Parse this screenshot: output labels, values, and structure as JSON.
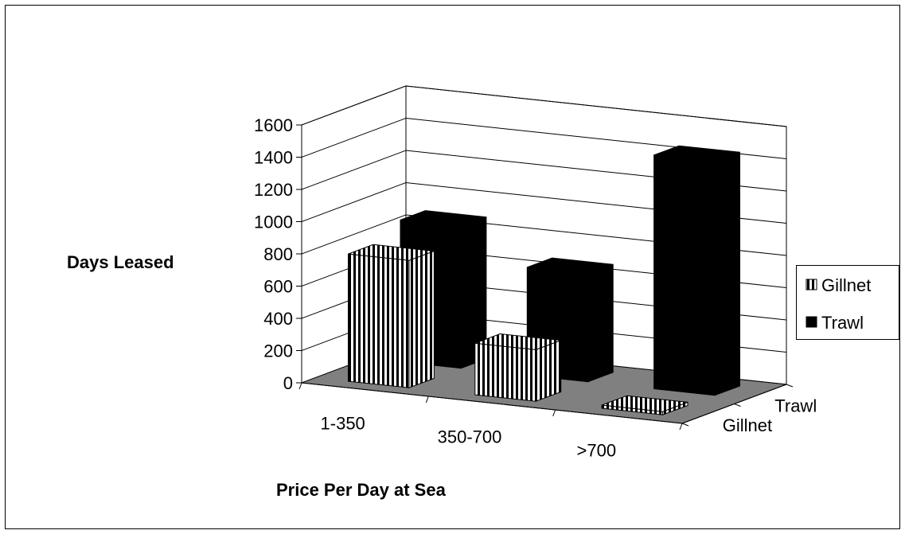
{
  "chart_data": {
    "type": "bar",
    "subtype": "3d-clustered-column",
    "title": "",
    "xlabel": "Price Per Day at Sea",
    "ylabel": "Days Leased",
    "categories": [
      "1-350",
      "350-700",
      ">700"
    ],
    "depth_labels": [
      "Trawl",
      "Gillnet"
    ],
    "ylim": [
      0,
      1600
    ],
    "yticks": [
      "0",
      "200",
      "400",
      "600",
      "800",
      "1000",
      "1200",
      "1400",
      "1600"
    ],
    "grid": true,
    "legend_position": "right",
    "series": [
      {
        "name": "Gillnet",
        "values": [
          790,
          320,
          20
        ],
        "pattern": "vertical-stripes",
        "color": "#ffffff"
      },
      {
        "name": "Trawl",
        "values": [
          880,
          670,
          1450
        ],
        "pattern": "solid",
        "color": "#000000"
      }
    ],
    "floor_color": "#808080",
    "wall_color": "#ffffff"
  }
}
